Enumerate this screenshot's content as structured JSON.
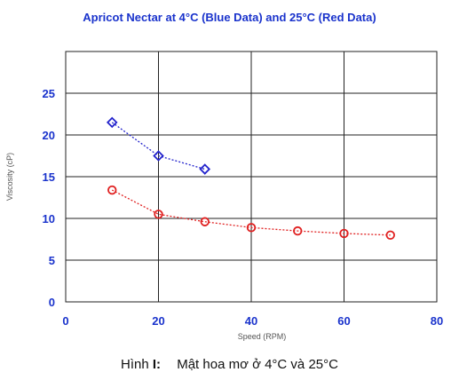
{
  "chart_data": {
    "type": "scatter",
    "title": "Apricot Nectar at 4°C (Blue Data) and 25°C (Red Data)",
    "xlabel": "Speed (RPM)",
    "ylabel": "Viscosity (cP)",
    "xlim": [
      0,
      80
    ],
    "ylim": [
      0,
      30
    ],
    "x_ticks": [
      "0",
      "20",
      "40",
      "60",
      "80"
    ],
    "y_ticks": [
      "0",
      "5",
      "10",
      "15",
      "20",
      "25"
    ],
    "grid": true,
    "series": [
      {
        "color": "#2222cc",
        "marker": "diamond",
        "x": [
          10,
          20,
          30
        ],
        "y": [
          21.5,
          17.5,
          15.9
        ]
      },
      {
        "color": "#e02020",
        "marker": "circle",
        "x": [
          10,
          20,
          30,
          40,
          50,
          60,
          70
        ],
        "y": [
          13.4,
          10.5,
          9.6,
          8.9,
          8.5,
          8.2,
          8.0
        ]
      }
    ]
  },
  "caption": {
    "figure_label": "Hình ",
    "figure_number": "I:",
    "text": "Mật hoa mơ ở 4°C và 25°C"
  }
}
